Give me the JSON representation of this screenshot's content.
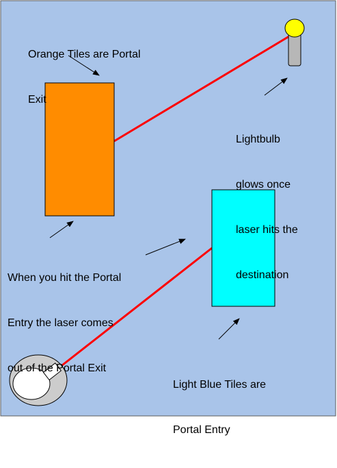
{
  "colors": {
    "background": "#a9c4e9",
    "border": "#5b5b5b",
    "portal_exit": "#ff8c00",
    "portal_entry": "#00ffff",
    "laser": "#ff0000",
    "bulb": "#ffff00",
    "bulb_base": "#b7b7b7",
    "emitter_ring": "#cccccc",
    "emitter_core": "#ffffff",
    "arrow": "#000000"
  },
  "labels": {
    "portal_exit_note": [
      "Orange Tiles are Portal",
      "Exit"
    ],
    "lightbulb_note": [
      "Lightbulb",
      "glows once",
      "laser hits the",
      "destination"
    ],
    "portal_behavior_note": [
      "When you hit the Portal",
      "Entry the laser comes",
      "out of the Portal Exit"
    ],
    "portal_entry_note": [
      "Light Blue Tiles are",
      "Portal Entry"
    ]
  },
  "icons": {
    "lightbulb": "lightbulb-icon",
    "laser_emitter": "laser-emitter-icon"
  }
}
